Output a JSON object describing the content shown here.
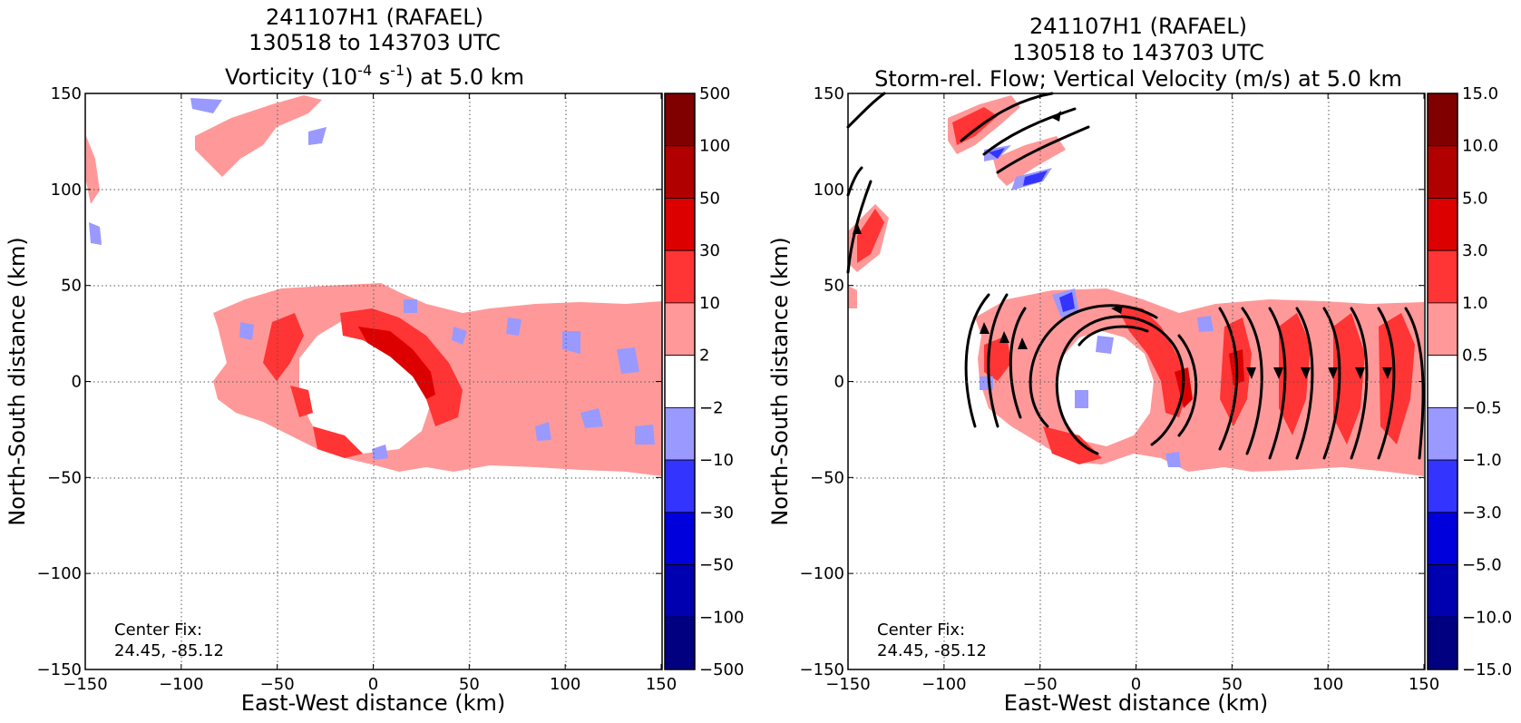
{
  "figure": {
    "left_panel": {
      "title_line1": "241107H1 (RAFAEL)",
      "title_line2": "130518 to 143703 UTC",
      "title_line3_pre": "Vorticity (10",
      "title_line3_exp1": "-4",
      "title_line3_mid": " s",
      "title_line3_exp2": "-1",
      "title_line3_post": ") at 5.0 km",
      "center_fix_label": "Center Fix:",
      "center_fix_value": "24.45, -85.12"
    },
    "right_panel": {
      "title_line1": "241107H1 (RAFAEL)",
      "title_line2": "130518 to 143703 UTC",
      "title_line3": "Storm-rel. Flow; Vertical Velocity (m/s) at 5.0 km",
      "center_fix_label": "Center Fix:",
      "center_fix_value": "24.45, -85.12"
    }
  },
  "chart_data": [
    {
      "type": "heatmap",
      "title": "241107H1 (RAFAEL) 130518 to 143703 UTC Vorticity (10^-4 s^-1) at 5.0 km",
      "xlabel": "East-West distance (km)",
      "ylabel": "North-South distance (km)",
      "xlim": [
        -150,
        150
      ],
      "ylim": [
        -150,
        150
      ],
      "xticks": [
        "−150",
        "−100",
        "−50",
        "0",
        "50",
        "100",
        "150"
      ],
      "yticks": [
        "150",
        "100",
        "50",
        "0",
        "−50",
        "−100",
        "−150"
      ],
      "grid": true,
      "colorbar": {
        "tick_labels": [
          "500",
          "100",
          "50",
          "30",
          "10",
          "2",
          "−2",
          "−10",
          "−30",
          "−50",
          "−100",
          "−500"
        ],
        "colors": [
          "#800000",
          "#b00000",
          "#dd0000",
          "#ff3434",
          "#ff9999",
          "#ffffff",
          "#9999ff",
          "#3434ff",
          "#0000dd",
          "#0000b0",
          "#000080"
        ]
      },
      "center_fix": [
        24.45,
        -85.12
      ]
    },
    {
      "type": "heatmap",
      "title": "241107H1 (RAFAEL) 130518 to 143703 UTC Storm-rel. Flow; Vertical Velocity (m/s) at 5.0 km",
      "xlabel": "East-West distance (km)",
      "ylabel": "North-South distance (km)",
      "xlim": [
        -150,
        150
      ],
      "ylim": [
        -150,
        150
      ],
      "xticks": [
        "−150",
        "−100",
        "−50",
        "0",
        "50",
        "100",
        "150"
      ],
      "yticks": [
        "150",
        "100",
        "50",
        "0",
        "−50",
        "−100",
        "−150"
      ],
      "grid": true,
      "colorbar": {
        "tick_labels": [
          "15.0",
          "10.0",
          "5.0",
          "3.0",
          "1.0",
          "0.5",
          "−0.5",
          "−1.0",
          "−3.0",
          "−5.0",
          "−10.0",
          "−15.0"
        ],
        "colors": [
          "#800000",
          "#b00000",
          "#dd0000",
          "#ff3434",
          "#ff9999",
          "#ffffff",
          "#9999ff",
          "#3434ff",
          "#0000dd",
          "#0000b0",
          "#000080"
        ]
      },
      "center_fix": [
        24.45,
        -85.12
      ]
    }
  ]
}
